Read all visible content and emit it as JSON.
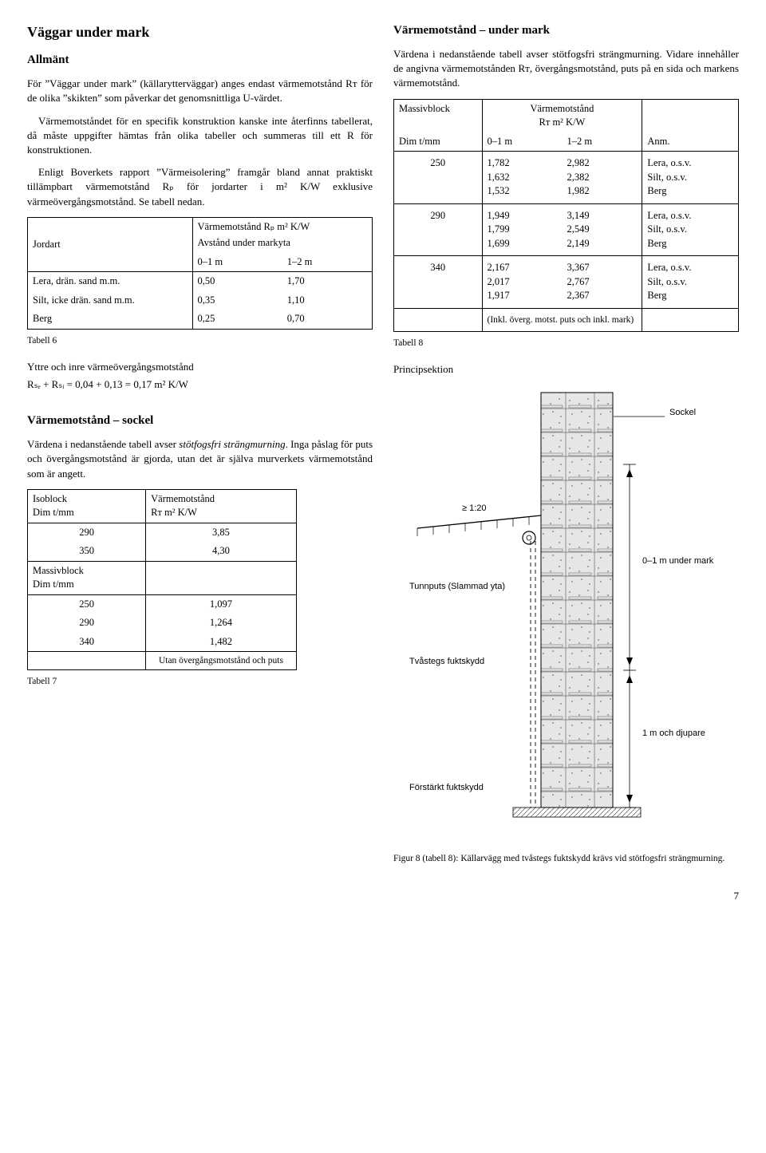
{
  "left": {
    "h2": "Väggar under mark",
    "h3a": "Allmänt",
    "p1": "För ”Väggar under mark” (källarytterväggar) anges endast värmemotstånd Rᴛ för de olika ”skikten” som påverkar det genomsnittliga U-värdet.",
    "p2": "Värmemotståndet för en specifik konstruktion kanske inte återfinns tabellerat, då måste uppgifter hämtas från olika tabeller och summeras till ett R för konstruktionen.",
    "p3": "Enligt Boverkets rapport ”Värmeisolering” framgår bland annat praktiskt tillämpbart värmemotstånd Rₚ för jordarter i m² K/W exklusive värmeövergångsmotstånd. Se tabell nedan.",
    "tbl6": {
      "head_left": "Jordart",
      "head_top": "Värmemotstånd Rₚ m² K/W",
      "head_sub": "Avstånd under markyta",
      "col_a": "0–1 m",
      "col_b": "1–2 m",
      "rows": [
        {
          "label": "Lera, drän. sand m.m.",
          "a": "0,50",
          "b": "1,70"
        },
        {
          "label": "Silt, icke drän. sand m.m.",
          "a": "0,35",
          "b": "1,10"
        },
        {
          "label": "Berg",
          "a": "0,25",
          "b": "0,70"
        }
      ],
      "caption": "Tabell 6"
    },
    "yttre_h": "Yttre och inre värmeövergångsmotstånd",
    "yttre_formula": "Rₛₑ + Rₛᵢ = 0,04 + 0,13 = 0,17 m² K/W",
    "h3b": "Värmemotstånd – sockel",
    "p4": "Värdena i nedanstående tabell avser stötfogsfri strängmurning. Inga påslag för puts och övergångsmotstånd är gjorda, utan det är själva murverkets värmemotstånd som är angett.",
    "tbl7": {
      "head_iso": "Isoblock",
      "head_dim": "Dim t/mm",
      "head_vm": "Värmemotstånd",
      "head_vm2": "Rᴛ m² K/W",
      "iso": [
        {
          "d": "290",
          "v": "3,85"
        },
        {
          "d": "350",
          "v": "4,30"
        }
      ],
      "head_massiv": "Massivblock",
      "mass": [
        {
          "d": "250",
          "v": "1,097"
        },
        {
          "d": "290",
          "v": "1,264"
        },
        {
          "d": "340",
          "v": "1,482"
        }
      ],
      "footer": "Utan övergångsmotstånd och puts",
      "caption": "Tabell 7"
    }
  },
  "right": {
    "h3a": "Värmemotstånd – under mark",
    "p1": "Värdena i nedanstående tabell avser stötfogsfri strängmurning. Vidare innehåller de angivna värmemotstånden Rᴛ, övergångsmotstånd, puts på en sida och markens värmemotstånd.",
    "tbl8": {
      "head_mb": "Massivblock",
      "head_dim": "Dim t/mm",
      "head_vm": "Värmemotstånd",
      "head_vm2": "Rᴛ m² K/W",
      "col_a": "0–1 m",
      "col_b": "1–2 m",
      "head_anm": "Anm.",
      "rows": [
        {
          "d": "250",
          "a": [
            "1,782",
            "1,632",
            "1,532"
          ],
          "b": [
            "2,982",
            "2,382",
            "1,982"
          ],
          "n": [
            "Lera, o.s.v.",
            "Silt, o.s.v.",
            "Berg"
          ]
        },
        {
          "d": "290",
          "a": [
            "1,949",
            "1,799",
            "1,699"
          ],
          "b": [
            "3,149",
            "2,549",
            "2,149"
          ],
          "n": [
            "Lera, o.s.v.",
            "Silt, o.s.v.",
            "Berg"
          ]
        },
        {
          "d": "340",
          "a": [
            "2,167",
            "2,017",
            "1,917"
          ],
          "b": [
            "3,367",
            "2,767",
            "2,367"
          ],
          "n": [
            "Lera, o.s.v.",
            "Silt, o.s.v.",
            "Berg"
          ]
        }
      ],
      "footer": "(Inkl. överg. motst. puts och inkl. mark)",
      "caption": "Tabell 8"
    },
    "princip": "Principsektion",
    "fig": {
      "sockel": "Sockel",
      "slope": "≥ 1:20",
      "tunnputs": "Tunnputs (Slammad yta)",
      "depth01": "0–1 m under mark",
      "tvastegs": "Tvåstegs fuktskydd",
      "depth1p": "1 m och djupare",
      "forstarkt": "Förstärkt fuktskydd",
      "caption": "Figur 8 (tabell 8): Källarvägg med tvåstegs fuktskydd krävs vid stötfogsfri strängmurning."
    }
  },
  "pagenum": "7"
}
